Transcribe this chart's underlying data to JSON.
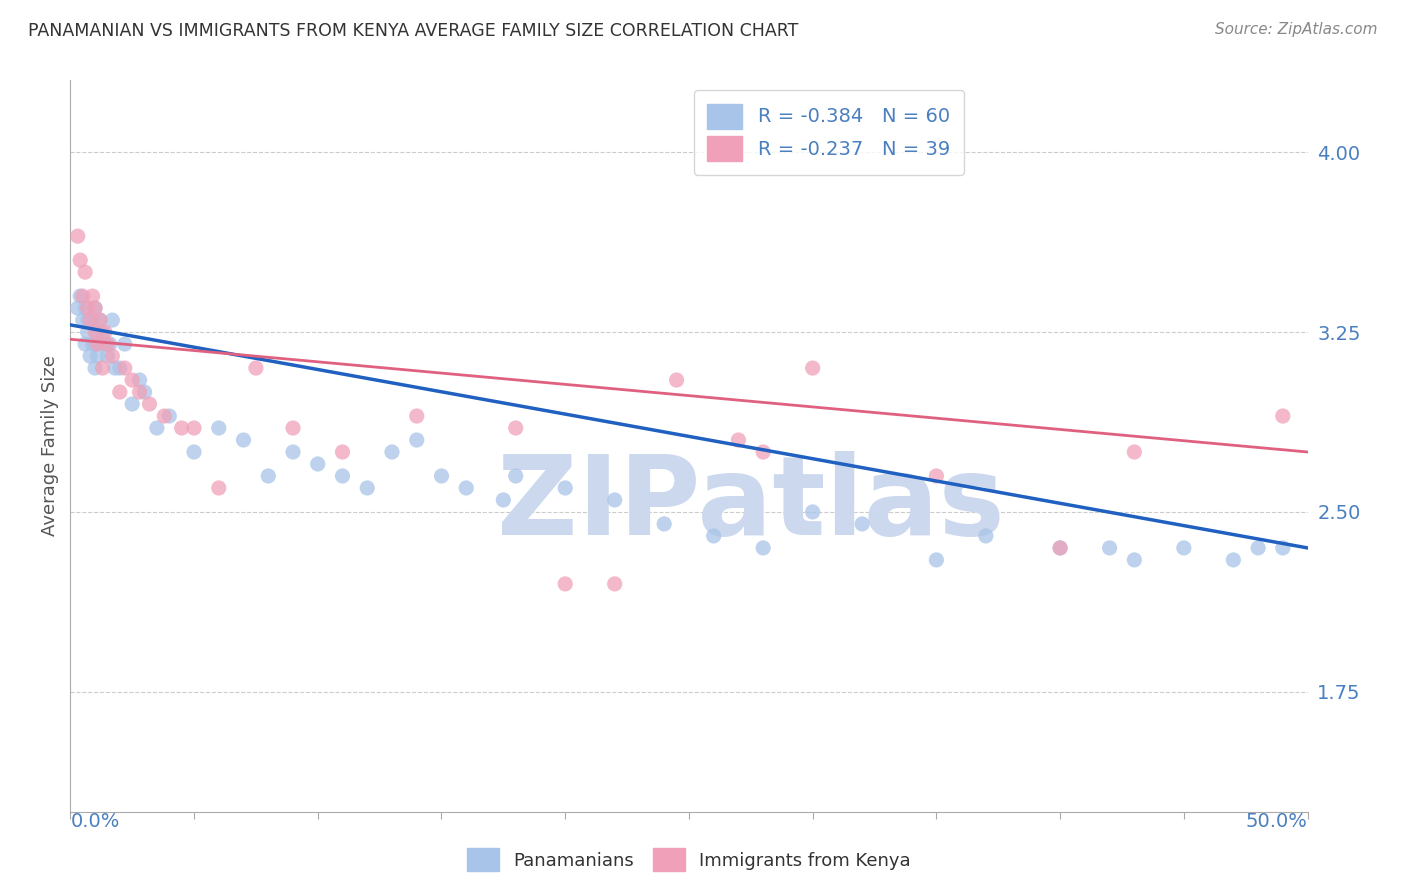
{
  "title": "PANAMANIAN VS IMMIGRANTS FROM KENYA AVERAGE FAMILY SIZE CORRELATION CHART",
  "source": "Source: ZipAtlas.com",
  "ylabel": "Average Family Size",
  "yticks": [
    1.75,
    2.5,
    3.25,
    4.0
  ],
  "xlim": [
    0.0,
    50.0
  ],
  "ylim": [
    1.25,
    4.3
  ],
  "blue_color": "#a8c4e8",
  "blue_line_color": "#2060c0",
  "pink_color": "#f0a0b8",
  "pink_line_color": "#e06080",
  "watermark": "ZIPatlas",
  "watermark_color": "#ccd8ee",
  "legend_blue_label": "R = -0.384   N = 60",
  "legend_pink_label": "R = -0.237   N = 39",
  "blue_scatter_x": [
    0.3,
    0.4,
    0.5,
    0.6,
    0.6,
    0.7,
    0.7,
    0.8,
    0.8,
    0.9,
    0.9,
    1.0,
    1.0,
    1.0,
    1.1,
    1.1,
    1.2,
    1.3,
    1.4,
    1.5,
    1.6,
    1.7,
    1.8,
    2.0,
    2.2,
    2.5,
    2.8,
    3.0,
    3.5,
    4.0,
    5.0,
    6.0,
    7.0,
    8.0,
    9.0,
    10.0,
    11.0,
    12.0,
    13.0,
    14.0,
    15.0,
    16.0,
    17.5,
    18.0,
    20.0,
    22.0,
    24.0,
    26.0,
    28.0,
    30.0,
    32.0,
    35.0,
    37.0,
    40.0,
    42.0,
    43.0,
    45.0,
    47.0,
    48.0,
    49.0
  ],
  "blue_scatter_y": [
    3.35,
    3.4,
    3.3,
    3.35,
    3.2,
    3.3,
    3.25,
    3.3,
    3.15,
    3.3,
    3.2,
    3.35,
    3.1,
    3.2,
    3.25,
    3.15,
    3.3,
    3.25,
    3.2,
    3.15,
    3.2,
    3.3,
    3.1,
    3.1,
    3.2,
    2.95,
    3.05,
    3.0,
    2.85,
    2.9,
    2.75,
    2.85,
    2.8,
    2.65,
    2.75,
    2.7,
    2.65,
    2.6,
    2.75,
    2.8,
    2.65,
    2.6,
    2.55,
    2.65,
    2.6,
    2.55,
    2.45,
    2.4,
    2.35,
    2.5,
    2.45,
    2.3,
    2.4,
    2.35,
    2.35,
    2.3,
    2.35,
    2.3,
    2.35,
    2.35
  ],
  "pink_scatter_x": [
    0.3,
    0.4,
    0.5,
    0.6,
    0.7,
    0.8,
    0.9,
    1.0,
    1.0,
    1.1,
    1.2,
    1.3,
    1.4,
    1.5,
    1.7,
    2.0,
    2.2,
    2.5,
    2.8,
    3.2,
    3.8,
    4.5,
    5.0,
    6.0,
    7.5,
    9.0,
    11.0,
    14.0,
    18.0,
    20.0,
    22.0,
    24.5,
    27.0,
    28.0,
    30.0,
    35.0,
    40.0,
    43.0,
    49.0
  ],
  "pink_scatter_y": [
    3.65,
    3.55,
    3.4,
    3.5,
    3.35,
    3.3,
    3.4,
    3.35,
    3.25,
    3.2,
    3.3,
    3.1,
    3.25,
    3.2,
    3.15,
    3.0,
    3.1,
    3.05,
    3.0,
    2.95,
    2.9,
    2.85,
    2.85,
    2.6,
    3.1,
    2.85,
    2.75,
    2.9,
    2.85,
    2.2,
    2.2,
    3.05,
    2.8,
    2.75,
    3.1,
    2.65,
    2.35,
    2.75,
    2.9
  ],
  "bg_color": "#ffffff",
  "grid_color": "#cccccc",
  "title_color": "#333333",
  "tick_label_color": "#4a7fc0"
}
